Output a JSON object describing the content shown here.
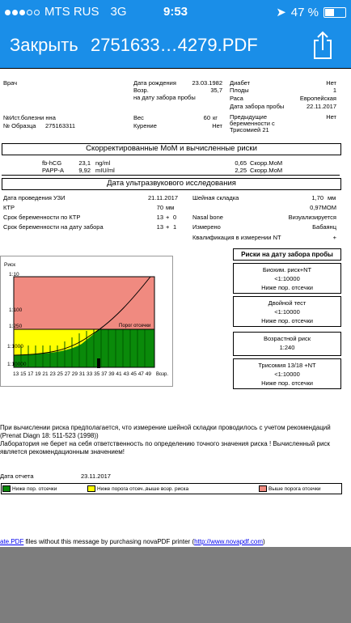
{
  "status": {
    "carrier": "MTS RUS",
    "network": "3G",
    "time": "9:53",
    "battery": "47 %"
  },
  "nav": {
    "close": "Закрыть",
    "title": "2751633…4279.PDF"
  },
  "patient": {
    "vrach_label": "Врач",
    "ist_label": "№Ист.болезни нна",
    "obr_label": "№ Образца",
    "obr_value": "275163311",
    "dob_label": "Дата рождения",
    "dob_value": "23.03.1982",
    "age_label": "Возр.",
    "age_value": "35,7",
    "age_sub": "на дату забора пробы",
    "weight_label": "Вес",
    "weight_value": "60",
    "weight_unit": "кг",
    "smoke_label": "Курение",
    "smoke_value": "Нет",
    "diab_label": "Диабет",
    "diab_value": "Нет",
    "plod_label": "Плоды",
    "plod_value": "1",
    "rasa_label": "Раса",
    "rasa_value": "Европейская",
    "date_zab_label": "Дата забора пробы",
    "date_zab_value": "22.11.2017",
    "prev_label": "Предыдущие беременности с Трисомией 21",
    "prev_l1": "Предыдущие",
    "prev_l2": "беременности с",
    "prev_l3": "Трисомией 21",
    "prev_value": "Нет"
  },
  "mom": {
    "title": "Скорректированные МоМ и вычисленные риски",
    "rows": [
      {
        "name": "fb-hCG",
        "value": "23,1",
        "unit": "ng/ml",
        "mom": "0,65",
        "mom_unit": "Скорр.МоМ"
      },
      {
        "name": "PAPP-A",
        "value": "9,92",
        "unit": "mIU/ml",
        "mom": "2,25",
        "mom_unit": "Скорр.МоМ"
      }
    ]
  },
  "uzi": {
    "title": "Дата ультразвукового исследования",
    "date_label": "Дата проведения УЗИ",
    "date_value": "21.11.2017",
    "ktr_label": "КТР",
    "ktr_value": "70",
    "ktr_unit": "мм",
    "srok_label": "Срок беременности по КТР",
    "srok_w": "13",
    "srok_plus": "+",
    "srok_d": "0",
    "srok2_label": "Срок беременности на дату забора",
    "srok2_w": "13",
    "srok2_plus": "+",
    "srok2_d": "1",
    "neck_label": "Шейная складка",
    "neck_value": "1,70",
    "neck_unit": "мм",
    "neck_mom": "0,97МОМ",
    "nasal_label": "Nasal bone",
    "nasal_value": "Визуализируется",
    "izm_label": "Измерено",
    "izm_value": "Бабаянц",
    "kval_label": "Квалификация в измерении NT",
    "kval_value": "+"
  },
  "chart": {
    "risk_label": "Риск",
    "y_labels": [
      "1:10",
      "1:100",
      "1:250",
      "1:1000",
      "1:10000"
    ],
    "x_labels": [
      "13",
      "15",
      "17",
      "19",
      "21",
      "23",
      "25",
      "27",
      "29",
      "31",
      "33",
      "35",
      "37",
      "39",
      "41",
      "43",
      "45",
      "47",
      "49"
    ],
    "x_axis_label": "Возр.",
    "threshold_label": "Порог отсечки",
    "colors": {
      "red": "#f08a80",
      "yellow": "#ffff00",
      "green": "#0a8a0a"
    }
  },
  "risks": {
    "title": "Риски на дату забора пробы",
    "items": [
      {
        "name": "Биохим. риск+NT",
        "value": "<1:10000",
        "result": "Ниже пор. отсечки"
      },
      {
        "name": "Двойной тест",
        "value": "<1:10000",
        "result": "Ниже пор. отсечки"
      },
      {
        "name": "Возрастной риск",
        "value": "1:240",
        "result": ""
      },
      {
        "name": "Трисомия 13/18 +NT",
        "value": "<1:10000",
        "result": "Ниже пор. отсечки"
      }
    ]
  },
  "notes": {
    "p1": "При вычислении риска предполагается, что измерение шейной складки проводилось с учетом рекомендаций (Prenat Diagn 18: 511-523 (1998))",
    "p1a": "При вычислении риска предполагается, что измерение шейной складки проводилось с учетом рекомендаций",
    "p1b": "(Prenat Diagn 18: 511-523 (1998))",
    "p2a": "Лаборатория не берет на себя ответственность по определению точного значения риска ! Вычисленный риск",
    "p2b": "является рекомендационным значением!"
  },
  "report": {
    "label": "Дата отчета",
    "value": "23.11.2017"
  },
  "legend": [
    {
      "color": "#0a8a0a",
      "text": "Ниже пор. отсечки"
    },
    {
      "color": "#ffff00",
      "text": "Ниже порога отсеч.,выше возр. риска"
    },
    {
      "color": "#f08a80",
      "text": "Выше порога отсечки"
    }
  ],
  "footer": {
    "pre": "ate.PDF",
    "text": " files without this message by purchasing novaPDF printer (",
    "link": "http://www.novapdf.com",
    "post": ")"
  }
}
